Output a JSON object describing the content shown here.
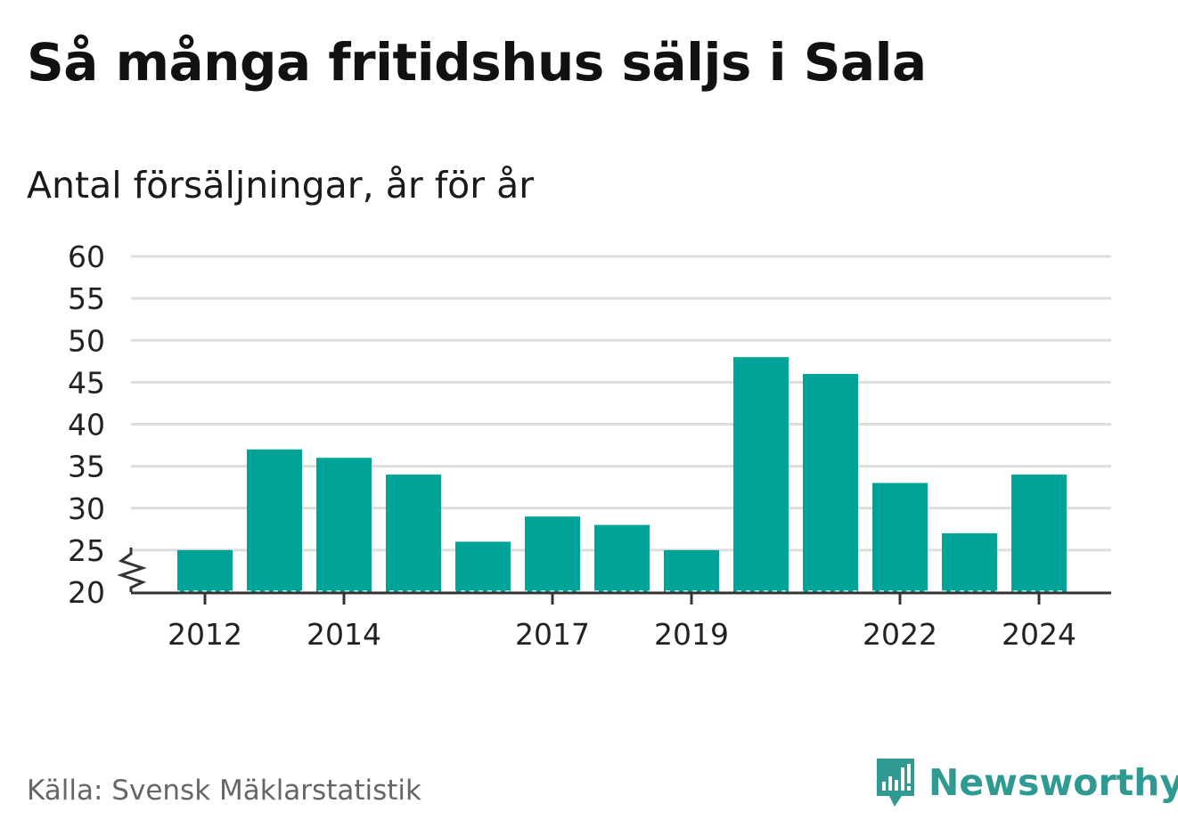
{
  "header": {
    "title": "Så många fritidshus säljs i Sala",
    "subtitle": "Antal försäljningar, år för år"
  },
  "footer": {
    "source": "Källa: Svensk Mäklarstatistik",
    "brand_name": "Newsworthy",
    "brand_icon": "bar-chart-speech-bubble-icon"
  },
  "colors": {
    "bar": "#00a398",
    "grid": "#dddddd",
    "axis": "#333333",
    "brand": "#2f9a92",
    "source_text": "#666666"
  },
  "chart_data": {
    "type": "bar",
    "title": "Så många fritidshus säljs i Sala",
    "subtitle": "Antal försäljningar, år för år",
    "xlabel": "",
    "ylabel": "",
    "categories": [
      2012,
      2013,
      2014,
      2015,
      2016,
      2017,
      2018,
      2019,
      2020,
      2021,
      2022,
      2023,
      2024
    ],
    "values": [
      25,
      37,
      36,
      34,
      26,
      29,
      28,
      25,
      48,
      46,
      33,
      27,
      34
    ],
    "ylim": [
      20,
      60
    ],
    "yticks": [
      20,
      25,
      30,
      35,
      40,
      45,
      50,
      55,
      60
    ],
    "xtick_labels": [
      "2012",
      "2014",
      "2017",
      "2019",
      "2022",
      "2024"
    ],
    "axis_break": true,
    "grid": true,
    "legend": "none"
  }
}
